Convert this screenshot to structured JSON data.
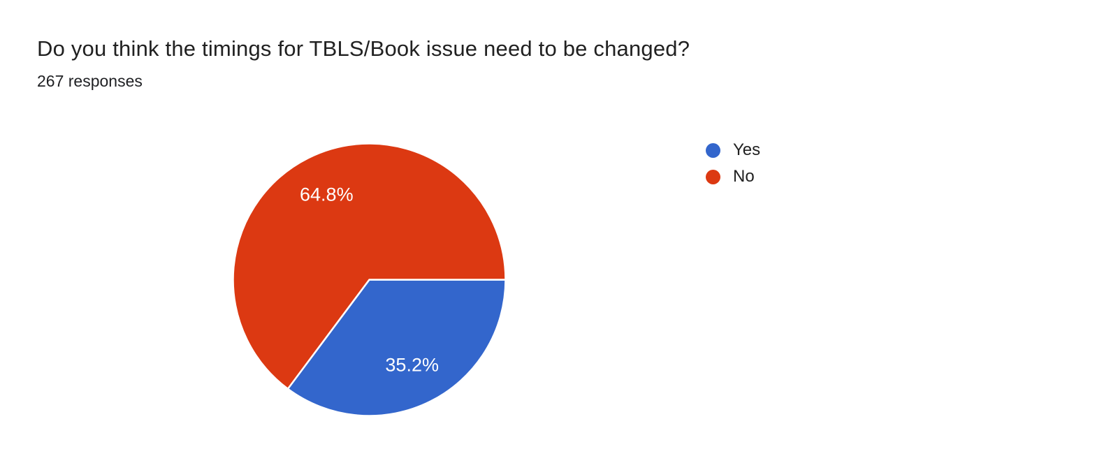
{
  "header": {
    "title": "Do you think the timings for TBLS/Book issue need to be changed?",
    "responses_label": "267 responses"
  },
  "chart_data": {
    "type": "pie",
    "title": "Do you think the timings for TBLS/Book issue need to be changed?",
    "subtitle": "267 responses",
    "total_responses": 267,
    "start_angle_deg_clockwise_from_east": 0,
    "direction": "clockwise",
    "legend_position": "right",
    "slices": [
      {
        "label": "Yes",
        "percent": 35.2,
        "value_label": "35.2%",
        "color": "#3366CC"
      },
      {
        "label": "No",
        "percent": 64.8,
        "value_label": "64.8%",
        "color": "#DC3912"
      }
    ],
    "label_color": "#ffffff",
    "stroke_color": "#ffffff"
  },
  "legend": {
    "items": [
      {
        "label": "Yes",
        "color": "#3366CC"
      },
      {
        "label": "No",
        "color": "#DC3912"
      }
    ]
  },
  "colors": {
    "background": "#ffffff",
    "title_text": "#212121",
    "subtitle_text": "#202124",
    "legend_text": "#212121"
  }
}
